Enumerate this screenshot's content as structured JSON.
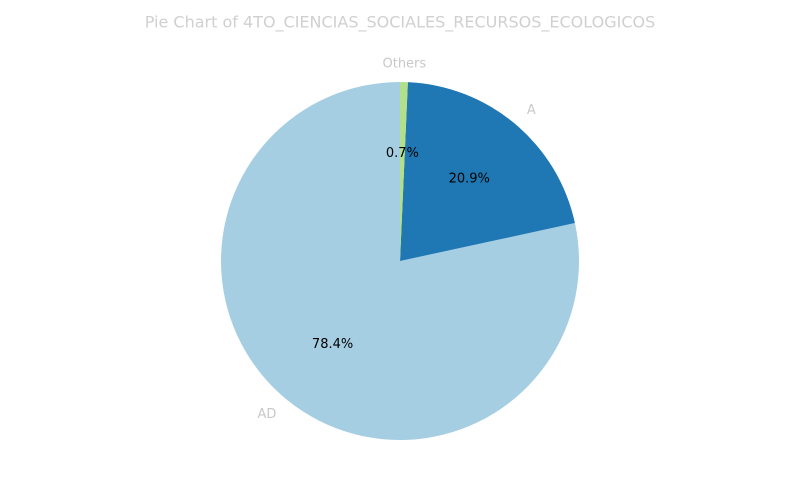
{
  "chart_data": {
    "type": "pie",
    "title": "Pie Chart of 4TO_CIENCIAS_SOCIALES_RECURSOS_ECOLOGICOS",
    "categories": [
      "AD",
      "A",
      "Others"
    ],
    "values": [
      78.4,
      20.9,
      0.7
    ],
    "value_labels": [
      "78.4%",
      "20.9%",
      "0.7%"
    ],
    "colors": [
      "#a6cee3",
      "#1f78b4",
      "#b2df8a"
    ],
    "start_angle": 90,
    "direction": "counterclockwise"
  }
}
